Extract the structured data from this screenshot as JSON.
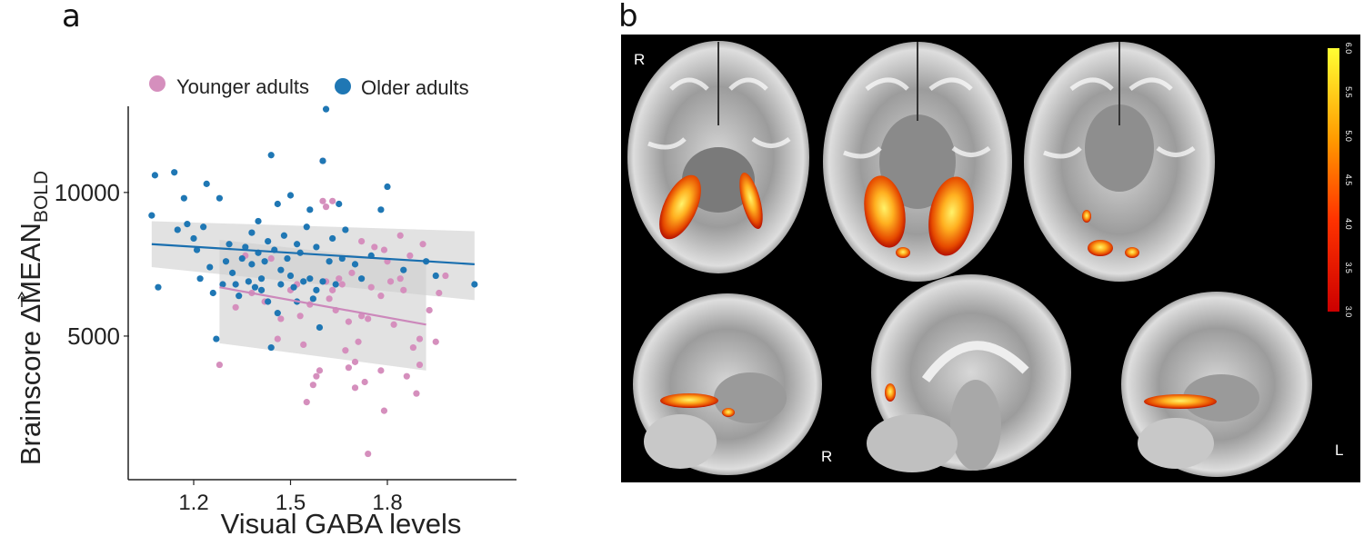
{
  "panel_a": {
    "letter": "a"
  },
  "panel_b": {
    "letter": "b",
    "orientation_labels": {
      "top_left": "R",
      "bottom_mid": "R",
      "bottom_right": "L"
    },
    "colorbar": {
      "ticks": [
        "3.0",
        "3.5",
        "4.0",
        "4.5",
        "5.0",
        "5.5",
        "6.0"
      ],
      "min": 3.0,
      "max": 6.0
    }
  },
  "chart_data": {
    "type": "scatter",
    "xlabel": "Visual GABA levels",
    "ylabel": "Brainscore ΔMEAN",
    "ylabel_sub": "BOLD",
    "xticks": [
      "1.2",
      "1.5",
      "1.8"
    ],
    "yticks": [
      "5000",
      "10000"
    ],
    "xlim": [
      1.0,
      2.2
    ],
    "ylim": [
      0,
      13000
    ],
    "legend_position": "top",
    "colors": {
      "younger": "#d58fbd",
      "older": "#1f77b4",
      "older_line": "#1a6faf",
      "younger_line": "#cc88bb",
      "ci": "#cfcfcf"
    },
    "series": [
      {
        "name": "Younger adults",
        "fit": {
          "x": [
            1.28,
            1.92
          ],
          "y": [
            6700,
            5400
          ]
        },
        "ci_upper": [
          8350,
          7550
        ],
        "ci_lower": [
          4750,
          3800
        ],
        "points": [
          [
            1.28,
            4000
          ],
          [
            1.33,
            6000
          ],
          [
            1.36,
            7800
          ],
          [
            1.38,
            6500
          ],
          [
            1.42,
            6200
          ],
          [
            1.46,
            4900
          ],
          [
            1.5,
            6600
          ],
          [
            1.52,
            6800
          ],
          [
            1.53,
            5700
          ],
          [
            1.54,
            4700
          ],
          [
            1.55,
            2700
          ],
          [
            1.56,
            6100
          ],
          [
            1.57,
            3300
          ],
          [
            1.58,
            3600
          ],
          [
            1.59,
            3800
          ],
          [
            1.6,
            9700
          ],
          [
            1.6,
            11100
          ],
          [
            1.61,
            6900
          ],
          [
            1.61,
            9500
          ],
          [
            1.62,
            6300
          ],
          [
            1.63,
            9700
          ],
          [
            1.64,
            5900
          ],
          [
            1.65,
            7000
          ],
          [
            1.66,
            6800
          ],
          [
            1.67,
            4500
          ],
          [
            1.68,
            3900
          ],
          [
            1.68,
            5500
          ],
          [
            1.7,
            3200
          ],
          [
            1.7,
            4100
          ],
          [
            1.71,
            4800
          ],
          [
            1.72,
            5700
          ],
          [
            1.72,
            8300
          ],
          [
            1.73,
            3400
          ],
          [
            1.74,
            5600
          ],
          [
            1.75,
            6700
          ],
          [
            1.76,
            8100
          ],
          [
            1.78,
            6400
          ],
          [
            1.79,
            8000
          ],
          [
            1.8,
            7600
          ],
          [
            1.81,
            6900
          ],
          [
            1.82,
            5400
          ],
          [
            1.84,
            7000
          ],
          [
            1.85,
            6600
          ],
          [
            1.86,
            3600
          ],
          [
            1.87,
            7800
          ],
          [
            1.88,
            4600
          ],
          [
            1.89,
            3000
          ],
          [
            1.9,
            4000
          ],
          [
            1.91,
            8200
          ],
          [
            1.93,
            5900
          ],
          [
            1.95,
            4800
          ],
          [
            1.96,
            6500
          ],
          [
            1.98,
            7100
          ],
          [
            1.79,
            2400
          ],
          [
            1.74,
            900
          ],
          [
            1.84,
            8500
          ],
          [
            1.63,
            6600
          ],
          [
            1.47,
            5600
          ],
          [
            1.44,
            7700
          ],
          [
            1.9,
            4900
          ],
          [
            1.78,
            3800
          ],
          [
            1.69,
            7200
          ]
        ]
      },
      {
        "name": "Older adults",
        "fit": {
          "x": [
            1.07,
            2.07
          ],
          "y": [
            8200,
            7500
          ]
        },
        "ci_upper": [
          9000,
          8650
        ],
        "ci_lower": [
          7400,
          6250
        ],
        "points": [
          [
            1.07,
            9200
          ],
          [
            1.08,
            10600
          ],
          [
            1.09,
            6700
          ],
          [
            1.14,
            10700
          ],
          [
            1.15,
            8700
          ],
          [
            1.17,
            9800
          ],
          [
            1.18,
            8900
          ],
          [
            1.2,
            8400
          ],
          [
            1.21,
            8000
          ],
          [
            1.22,
            7000
          ],
          [
            1.23,
            8800
          ],
          [
            1.24,
            10300
          ],
          [
            1.25,
            7400
          ],
          [
            1.26,
            6500
          ],
          [
            1.27,
            4900
          ],
          [
            1.28,
            9800
          ],
          [
            1.29,
            6800
          ],
          [
            1.3,
            7600
          ],
          [
            1.31,
            8200
          ],
          [
            1.32,
            7200
          ],
          [
            1.33,
            6800
          ],
          [
            1.34,
            6400
          ],
          [
            1.35,
            7700
          ],
          [
            1.36,
            8100
          ],
          [
            1.37,
            6900
          ],
          [
            1.38,
            8600
          ],
          [
            1.38,
            7500
          ],
          [
            1.39,
            6700
          ],
          [
            1.4,
            9000
          ],
          [
            1.4,
            7900
          ],
          [
            1.41,
            7000
          ],
          [
            1.42,
            7600
          ],
          [
            1.43,
            6200
          ],
          [
            1.43,
            8300
          ],
          [
            1.44,
            4600
          ],
          [
            1.44,
            11300
          ],
          [
            1.45,
            8000
          ],
          [
            1.46,
            9600
          ],
          [
            1.47,
            7300
          ],
          [
            1.47,
            6800
          ],
          [
            1.48,
            8500
          ],
          [
            1.49,
            7700
          ],
          [
            1.5,
            9900
          ],
          [
            1.5,
            7100
          ],
          [
            1.51,
            6700
          ],
          [
            1.52,
            8200
          ],
          [
            1.53,
            7900
          ],
          [
            1.54,
            6900
          ],
          [
            1.55,
            8800
          ],
          [
            1.56,
            9400
          ],
          [
            1.56,
            7000
          ],
          [
            1.57,
            6300
          ],
          [
            1.58,
            8100
          ],
          [
            1.59,
            5300
          ],
          [
            1.6,
            6900
          ],
          [
            1.6,
            11100
          ],
          [
            1.61,
            12900
          ],
          [
            1.62,
            7600
          ],
          [
            1.63,
            8400
          ],
          [
            1.64,
            6800
          ],
          [
            1.65,
            9600
          ],
          [
            1.66,
            7700
          ],
          [
            1.67,
            8700
          ],
          [
            1.7,
            7500
          ],
          [
            1.72,
            7000
          ],
          [
            1.75,
            7800
          ],
          [
            1.78,
            9400
          ],
          [
            1.8,
            10200
          ],
          [
            1.85,
            7300
          ],
          [
            1.95,
            7100
          ],
          [
            2.07,
            6800
          ],
          [
            1.92,
            7600
          ],
          [
            1.41,
            6600
          ],
          [
            1.46,
            5800
          ],
          [
            1.52,
            6200
          ],
          [
            1.58,
            6600
          ]
        ]
      }
    ]
  }
}
